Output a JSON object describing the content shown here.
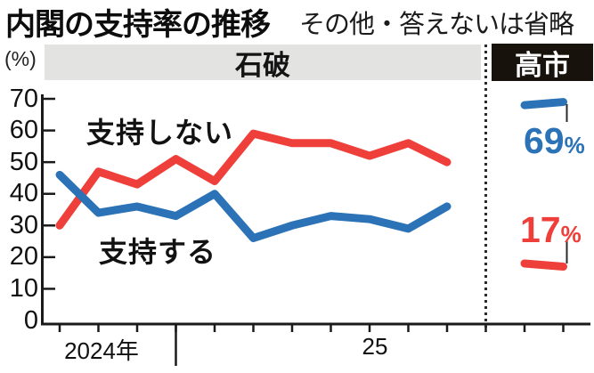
{
  "header": {
    "title": "内閣の支持率の推移",
    "subtitle": "その他・答えないは省略"
  },
  "chart_data": {
    "type": "line",
    "title": "内閣の支持率の推移",
    "subtitle": "その他・答えないは省略",
    "unit_label": "(%)",
    "ylim": [
      0,
      70
    ],
    "yticks": [
      0,
      10,
      20,
      30,
      40,
      50,
      60,
      70
    ],
    "grid": false,
    "legend_position": "inline-labels",
    "eras": [
      {
        "key": "ishiba",
        "label": "石破",
        "band_color": "#e3e3e2",
        "text_color": "#141414"
      },
      {
        "key": "takaichi",
        "label": "高市",
        "band_color": "#17120c",
        "text_color": "#ffffff"
      }
    ],
    "x_year_labels": [
      {
        "text": "2024年"
      },
      {
        "text": "25"
      }
    ],
    "series": [
      {
        "key": "disapprove",
        "name": "支持しない",
        "color": "#ee3f3a",
        "ishiba_values": [
          30,
          47,
          43,
          51,
          44,
          59,
          56,
          56,
          52,
          56,
          50
        ],
        "takaichi_values": [
          18,
          17
        ],
        "latest_value_label": "17",
        "percent_sign": "%"
      },
      {
        "key": "approve",
        "name": "支持する",
        "color": "#2b73b6",
        "ishiba_values": [
          46,
          34,
          36,
          33,
          40,
          26,
          30,
          33,
          32,
          29,
          36
        ],
        "takaichi_values": [
          68,
          69
        ],
        "latest_value_label": "69",
        "percent_sign": "%"
      }
    ]
  }
}
